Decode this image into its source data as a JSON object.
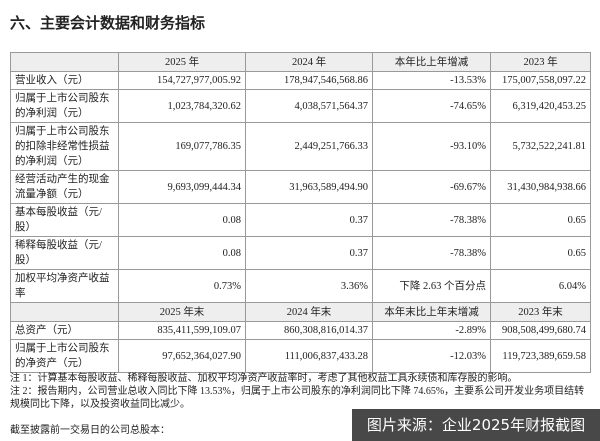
{
  "title": "六、主要会计数据和财务指标",
  "table": {
    "sections": [
      {
        "header": [
          "2025 年",
          "2024 年",
          "本年比上年增减",
          "2023 年"
        ],
        "rows": [
          [
            "营业收入（元）",
            "154,727,977,005.92",
            "178,947,546,568.86",
            "-13.53%",
            "175,007,558,097.22"
          ],
          [
            "归属于上市公司股东的净利润（元）",
            "1,023,784,320.62",
            "4,038,571,564.37",
            "-74.65%",
            "6,319,420,453.25"
          ],
          [
            "归属于上市公司股东的扣除非经常性损益的净利润（元）",
            "169,077,786.35",
            "2,449,251,766.33",
            "-93.10%",
            "5,732,522,241.81"
          ],
          [
            "经营活动产生的现金流量净额（元）",
            "9,693,099,444.34",
            "31,963,589,494.90",
            "-69.67%",
            "31,430,984,938.66"
          ],
          [
            "基本每股收益（元/股）",
            "0.08",
            "0.37",
            "-78.38%",
            "0.65"
          ],
          [
            "稀释每股收益（元/股）",
            "0.08",
            "0.37",
            "-78.38%",
            "0.65"
          ],
          [
            "加权平均净资产收益率",
            "0.73%",
            "3.36%",
            "下降 2.63 个百分点",
            "6.04%"
          ]
        ]
      },
      {
        "header": [
          "2025 年末",
          "2024 年末",
          "本年末比上年末增减",
          "2023 年末"
        ],
        "rows": [
          [
            "总资产（元）",
            "835,411,599,109.07",
            "860,308,816,014.37",
            "-2.89%",
            "908,508,499,680.74"
          ],
          [
            "归属于上市公司股东的净资产（元）",
            "97,652,364,027.90",
            "111,006,837,433.28",
            "-12.03%",
            "119,723,389,659.58"
          ]
        ]
      }
    ]
  },
  "notes": [
    "注 1：计算基本每股收益、稀释每股收益、加权平均净资产收益率时，考虑了其他权益工具永续债和库存股的影响。",
    "注 2：报告期内，公司营业总收入同比下降 13.53%，归属于上市公司股东的净利润同比下降 74.65%，主要系公司开发业务项目结转规模同比下降，以及投资收益同比减少。"
  ],
  "footer": "截至披露前一交易日的公司总股本：",
  "watermark": "图片来源：企业2025年财报截图"
}
